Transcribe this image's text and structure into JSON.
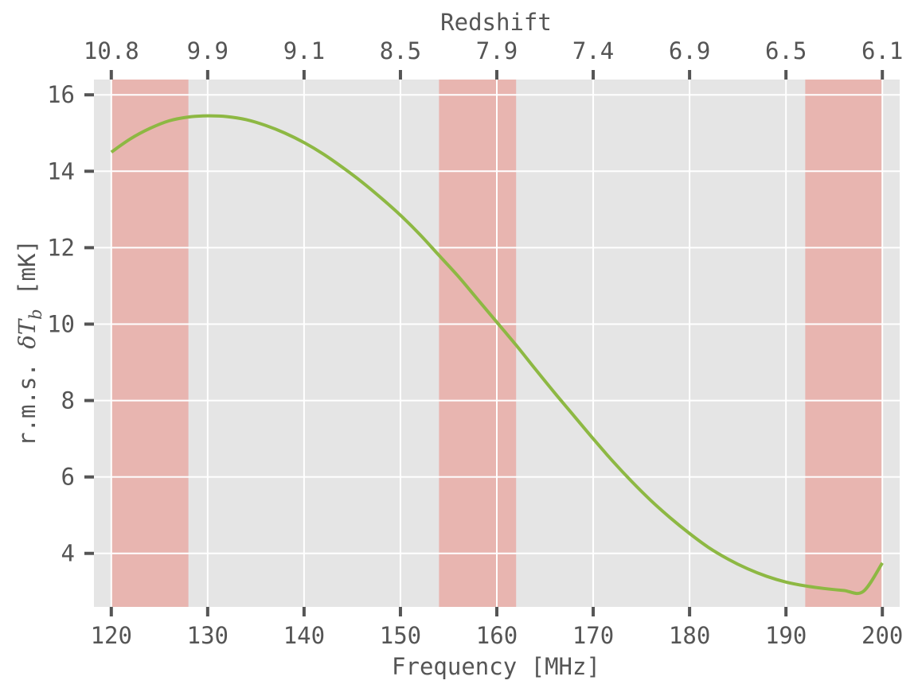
{
  "chart_data": {
    "type": "line",
    "title": "",
    "xlabel": "Frequency [MHz]",
    "ylabel": "r.m.s. δT_b [mK]",
    "ylabel_text": "r.m.s. ",
    "ylabel_math": "δT",
    "ylabel_sub": "b",
    "ylabel_unit": " [mK]",
    "secondary_xlabel": "Redshift",
    "xlim": [
      118.2,
      201.8
    ],
    "ylim": [
      2.6,
      16.4
    ],
    "x_ticks": [
      120,
      130,
      140,
      150,
      160,
      170,
      180,
      190,
      200
    ],
    "x_tick_labels": [
      "120",
      "130",
      "140",
      "150",
      "160",
      "170",
      "180",
      "190",
      "200"
    ],
    "y_ticks": [
      4,
      6,
      8,
      10,
      12,
      14,
      16
    ],
    "y_tick_labels": [
      "4",
      "6",
      "8",
      "10",
      "12",
      "14",
      "16"
    ],
    "top_ticks": [
      120,
      130,
      140,
      150,
      160,
      170,
      180,
      190,
      200
    ],
    "top_tick_labels": [
      "10.8",
      "9.9",
      "9.1",
      "8.5",
      "7.9",
      "7.4",
      "6.9",
      "6.5",
      "6.1"
    ],
    "grid": true,
    "shaded_bands": [
      [
        120,
        128
      ],
      [
        154,
        162
      ],
      [
        192,
        200
      ]
    ],
    "series": [
      {
        "x": [
          120,
          122,
          124,
          126,
          128,
          130,
          132,
          134,
          136,
          138,
          140,
          142,
          144,
          146,
          148,
          150,
          152,
          154,
          156,
          158,
          160,
          162,
          164,
          166,
          168,
          170,
          172,
          174,
          176,
          178,
          180,
          182,
          184,
          186,
          188,
          190,
          192,
          194,
          196,
          198,
          200
        ],
        "values": [
          14.5,
          14.85,
          15.12,
          15.32,
          15.42,
          15.45,
          15.43,
          15.35,
          15.2,
          15.0,
          14.75,
          14.45,
          14.1,
          13.72,
          13.3,
          12.85,
          12.35,
          11.8,
          11.25,
          10.65,
          10.05,
          9.45,
          8.82,
          8.2,
          7.6,
          7.0,
          6.42,
          5.88,
          5.38,
          4.93,
          4.52,
          4.15,
          3.85,
          3.6,
          3.4,
          3.25,
          3.15,
          3.08,
          3.03,
          3.0,
          3.75
        ]
      }
    ],
    "colors": {
      "plot_bg": "#e5e5e5",
      "grid": "#ffffff",
      "band": "#e8a49e",
      "line": "#8db843",
      "text": "#555555",
      "tick": "#555555"
    }
  }
}
